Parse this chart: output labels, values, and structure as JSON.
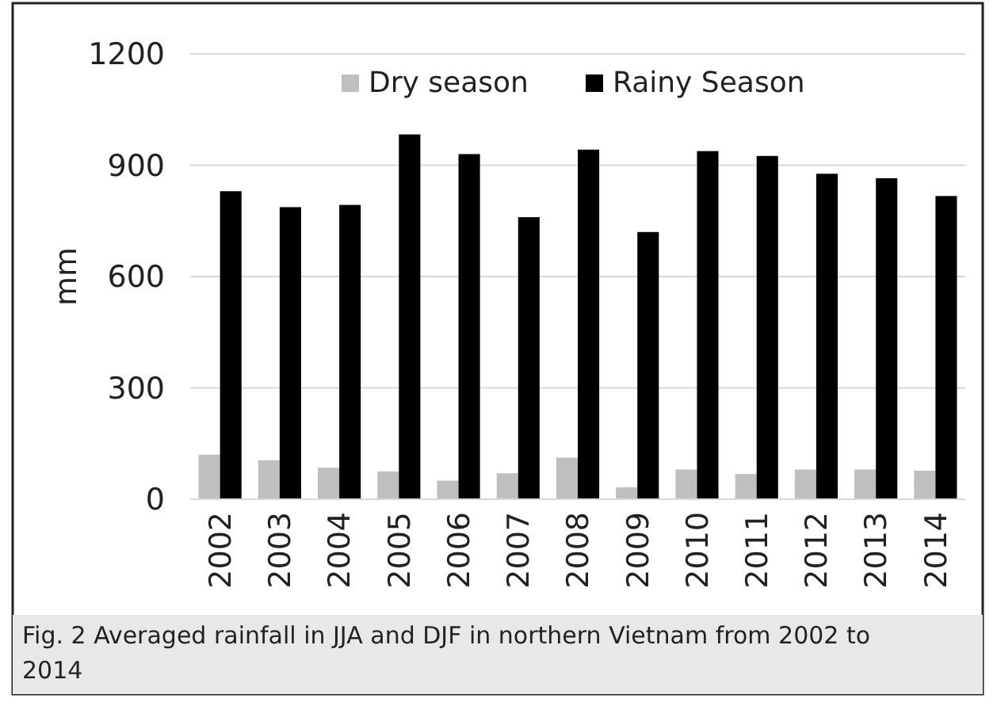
{
  "chart_data": {
    "type": "bar",
    "categories": [
      "2002",
      "2003",
      "2004",
      "2005",
      "2006",
      "2007",
      "2008",
      "2009",
      "2010",
      "2011",
      "2012",
      "2013",
      "2014"
    ],
    "series": [
      {
        "name": "Dry season",
        "color": "#bfbfbf",
        "values": [
          120,
          105,
          85,
          75,
          50,
          70,
          112,
          32,
          80,
          68,
          80,
          80,
          77
        ]
      },
      {
        "name": "Rainy Season",
        "color": "#000000",
        "values": [
          830,
          787,
          793,
          983,
          930,
          760,
          942,
          720,
          938,
          925,
          877,
          865,
          817
        ]
      }
    ],
    "ylabel": "mm",
    "ylim": [
      0,
      1200
    ],
    "yticks": [
      0,
      300,
      600,
      900,
      1200
    ],
    "grid": "y",
    "legend": "top",
    "annotations": [
      "Fig. 2 Averaged rainfall in JJA and DJF in northern Vietnam from 2002 to 2014"
    ]
  }
}
